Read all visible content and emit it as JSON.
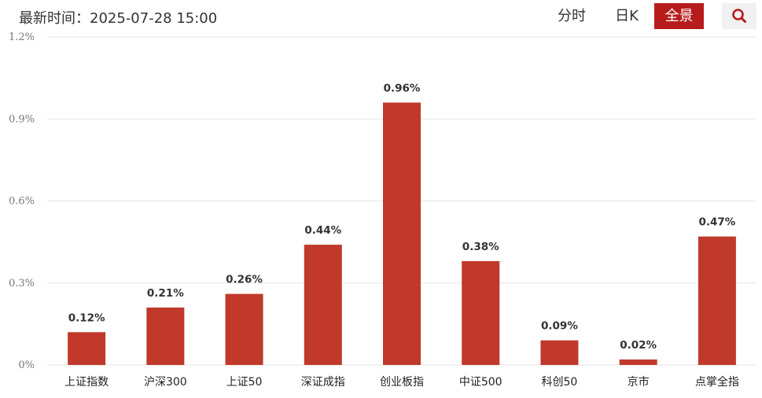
{
  "header": {
    "update_time": "最新时间：2025-07-28 15:00",
    "tabs": [
      {
        "label": "分时",
        "active": false
      },
      {
        "label": "日K",
        "active": false
      },
      {
        "label": "全景",
        "active": true
      }
    ],
    "search_icon": "search-icon"
  },
  "colors": {
    "bar": "#c0392b",
    "active_tab": "#b71c1c",
    "grid": "#e6e6e6"
  },
  "chart_data": {
    "type": "bar",
    "title": "",
    "xlabel": "",
    "ylabel": "",
    "ylim": [
      0,
      1.2
    ],
    "yticks": [
      0,
      0.3,
      0.6,
      0.9,
      1.2
    ],
    "ytick_labels": [
      "0%",
      "0.3%",
      "0.6%",
      "0.9%",
      "1.2%"
    ],
    "grid": true,
    "categories": [
      "上证指数",
      "沪深300",
      "上证50",
      "深证成指",
      "创业板指",
      "中证500",
      "科创50",
      "京市",
      "点掌全指"
    ],
    "values": [
      0.12,
      0.21,
      0.26,
      0.44,
      0.96,
      0.38,
      0.09,
      0.02,
      0.47
    ],
    "value_labels": [
      "0.12%",
      "0.21%",
      "0.26%",
      "0.44%",
      "0.96%",
      "0.38%",
      "0.09%",
      "0.02%",
      "0.47%"
    ]
  }
}
